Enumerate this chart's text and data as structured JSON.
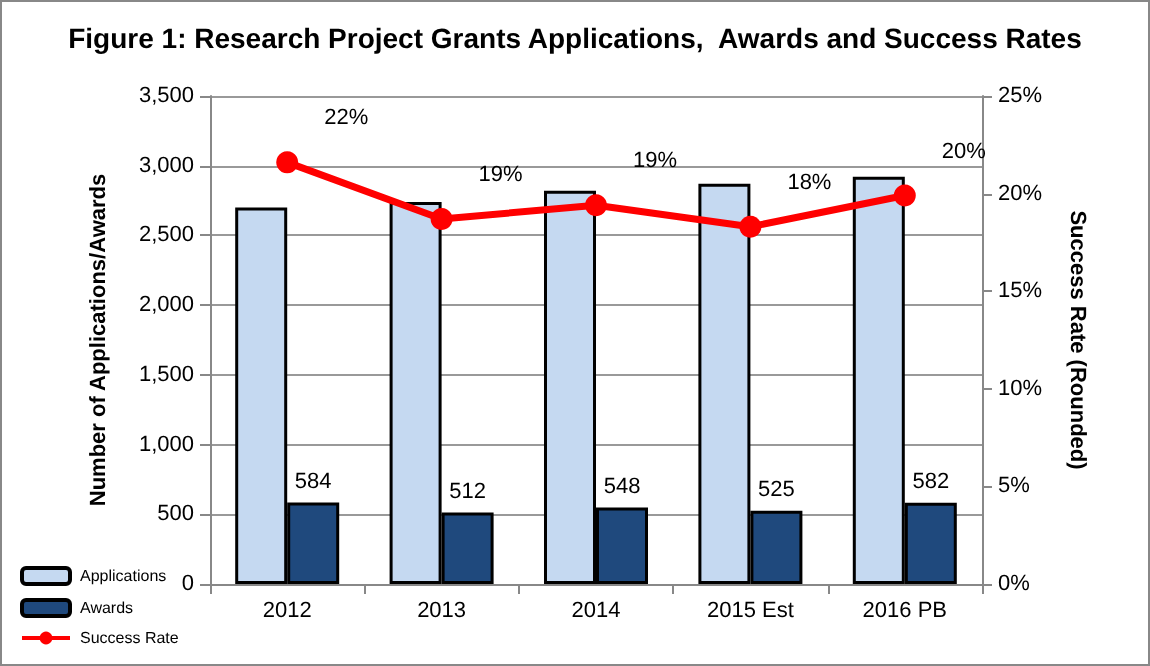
{
  "chart_data": {
    "type": "bar",
    "title": "Figure 1: Research Project Grants Applications,  Awards and Success Rates",
    "ylabel": "Number of Applications/Awards",
    "y2label": "Success Rate (Rounded)",
    "categories": [
      "2012",
      "2013",
      "2014",
      "2015 Est",
      "2016 PB"
    ],
    "series": [
      {
        "name": "Applications",
        "color": "#c5d9f1",
        "values": [
          2700,
          2740,
          2820,
          2870,
          2920
        ]
      },
      {
        "name": "Awards",
        "color": "#1f497d",
        "values": [
          584,
          512,
          548,
          525,
          582
        ],
        "value_labels": [
          "584",
          "512",
          "548",
          "525",
          "582"
        ]
      },
      {
        "name": "Success Rate",
        "type": "line",
        "axis": "y2",
        "color": "#ff0000",
        "values": [
          21.6,
          18.7,
          19.4,
          18.3,
          19.9
        ],
        "value_labels": [
          "22%",
          "19%",
          "19%",
          "18%",
          "20%"
        ]
      }
    ],
    "ylim": [
      0,
      3500
    ],
    "yticks": [
      {
        "value": 0,
        "label": "0"
      },
      {
        "value": 500,
        "label": "500"
      },
      {
        "value": 1000,
        "label": "1,000"
      },
      {
        "value": 1500,
        "label": "1,500"
      },
      {
        "value": 2000,
        "label": "2,000"
      },
      {
        "value": 2500,
        "label": "2,500"
      },
      {
        "value": 3000,
        "label": "3,000"
      },
      {
        "value": 3500,
        "label": "3,500"
      }
    ],
    "y2lim": [
      0,
      25
    ],
    "y2ticks": [
      {
        "value": 0,
        "label": "0%"
      },
      {
        "value": 5,
        "label": "5%"
      },
      {
        "value": 10,
        "label": "10%"
      },
      {
        "value": 15,
        "label": "15%"
      },
      {
        "value": 20,
        "label": "20%"
      },
      {
        "value": 25,
        "label": "25%"
      }
    ],
    "grid": "y",
    "legend": "bottom left",
    "marker": "circle"
  }
}
